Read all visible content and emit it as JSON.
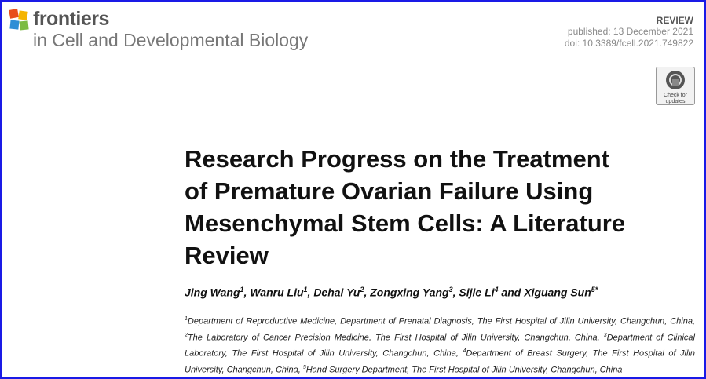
{
  "header": {
    "brand": "frontiers",
    "journal": "in Cell and Developmental Biology",
    "article_type": "REVIEW",
    "published": "published: 13 December 2021",
    "doi": "doi: 10.3389/fcell.2021.749822",
    "badge": [
      "Check for",
      "updates"
    ]
  },
  "title": [
    "Research Progress on the Treatment",
    "of Premature Ovarian Failure Using",
    "Mesenchymal Stem Cells: A Literature",
    "Review"
  ],
  "authors": [
    {
      "name": "Jing Wang",
      "sup": "1",
      "sep": ","
    },
    {
      "name": "Wanru Liu",
      "sup": "1",
      "sep": ","
    },
    {
      "name": "Dehai Yu",
      "sup": "2",
      "sep": ","
    },
    {
      "name": "Zongxing Yang",
      "sup": "3",
      "sep": ","
    },
    {
      "name": "Sijie Li",
      "sup": "4",
      "sep": "and"
    },
    {
      "name": "Xiguang Sun",
      "sup": "5*"
    }
  ],
  "affiliations": [
    {
      "num": "1",
      "text": "Department of Reproductive Medicine, Department of Prenatal Diagnosis, The First Hospital of Jilin University, Changchun, China,"
    },
    {
      "num": "2",
      "text": "The Laboratory of Cancer Precision Medicine, The First Hospital of Jilin University, Changchun, China,"
    },
    {
      "num": "3",
      "text": "Department of Clinical Laboratory, The First Hospital of Jilin University, Changchun, China,"
    },
    {
      "num": "4",
      "text": "Department of Breast Surgery, The First Hospital of Jilin University, Changchun, China,"
    },
    {
      "num": "5",
      "text": "Hand Surgery Department, The First Hospital of Jilin University, Changchun, China"
    }
  ]
}
